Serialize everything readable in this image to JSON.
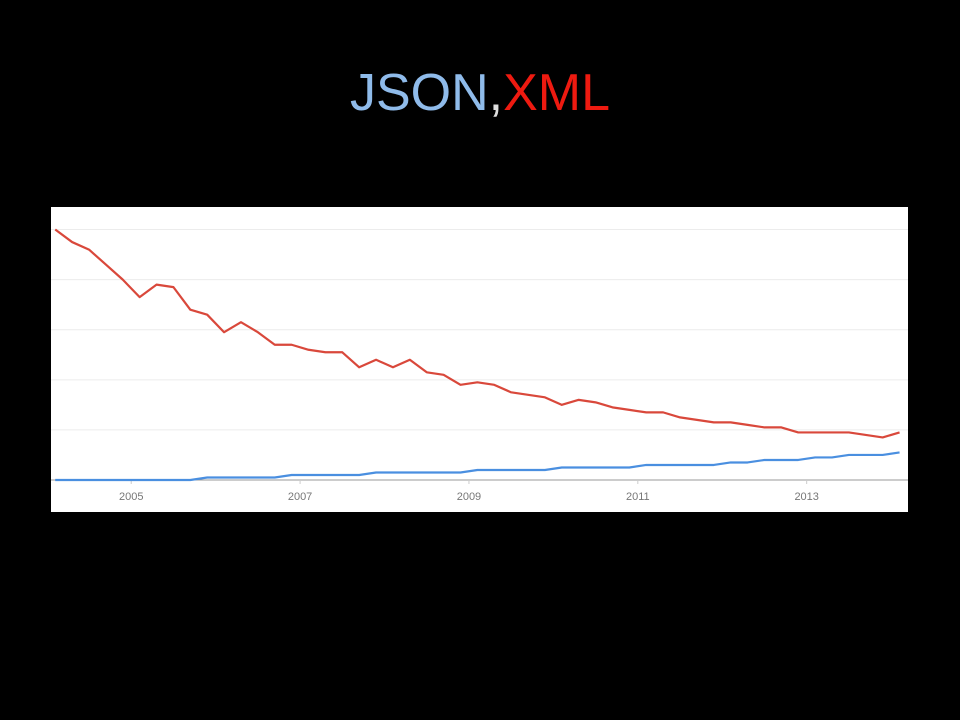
{
  "chart_data": {
    "type": "line",
    "title_separator": ",",
    "x": [
      2004.1,
      2004.3,
      2004.5,
      2004.7,
      2004.9,
      2005.1,
      2005.3,
      2005.5,
      2005.7,
      2005.9,
      2006.1,
      2006.3,
      2006.5,
      2006.7,
      2006.9,
      2007.1,
      2007.3,
      2007.5,
      2007.7,
      2007.9,
      2008.1,
      2008.3,
      2008.5,
      2008.7,
      2008.9,
      2009.1,
      2009.3,
      2009.5,
      2009.7,
      2009.9,
      2010.1,
      2010.3,
      2010.5,
      2010.7,
      2010.9,
      2011.1,
      2011.3,
      2011.5,
      2011.7,
      2011.9,
      2012.1,
      2012.3,
      2012.5,
      2012.7,
      2012.9,
      2013.1,
      2013.3,
      2013.5,
      2013.7,
      2013.9,
      2014.1
    ],
    "series": [
      {
        "name": "JSON",
        "color": "#4a8fe0",
        "title_color": "#8fbbea",
        "values": [
          0,
          0,
          0,
          0,
          0,
          0,
          0,
          0,
          0,
          1,
          1,
          1,
          1,
          1,
          2,
          2,
          2,
          2,
          2,
          3,
          3,
          3,
          3,
          3,
          3,
          4,
          4,
          4,
          4,
          4,
          5,
          5,
          5,
          5,
          5,
          6,
          6,
          6,
          6,
          6,
          7,
          7,
          8,
          8,
          8,
          9,
          9,
          10,
          10,
          10,
          11
        ]
      },
      {
        "name": "XML",
        "color": "#d9483b",
        "title_color": "#ee1a10",
        "values": [
          100,
          95,
          92,
          86,
          80,
          73,
          78,
          77,
          68,
          66,
          59,
          63,
          59,
          54,
          54,
          52,
          51,
          51,
          45,
          48,
          45,
          48,
          43,
          42,
          38,
          39,
          38,
          35,
          34,
          33,
          30,
          32,
          31,
          29,
          28,
          27,
          27,
          25,
          24,
          23,
          23,
          22,
          21,
          21,
          19,
          19,
          19,
          19,
          18,
          17,
          19
        ]
      }
    ],
    "xlim": [
      2004.05,
      2014.2
    ],
    "xticks": [
      2005,
      2007,
      2009,
      2011,
      2013
    ],
    "ylim": [
      0,
      109
    ],
    "ygrid_lines": [
      20,
      40,
      60,
      80,
      100
    ],
    "grid": true
  }
}
